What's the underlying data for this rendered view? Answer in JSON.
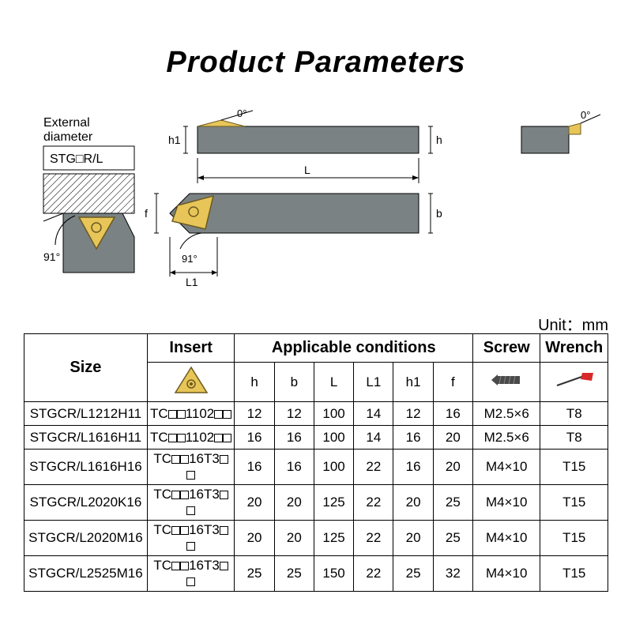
{
  "title": "Product Parameters",
  "unit_label": "Unit：mm",
  "diagram": {
    "ext_diam_label": "External\ndiameter",
    "stg_label": "STG□R/L",
    "angle0": "0°",
    "angle91": "91°",
    "dim_h": "h",
    "dim_h1": "h1",
    "dim_b": "b",
    "dim_f": "f",
    "dim_L": "L",
    "dim_L1": "L1",
    "colors": {
      "bar": "#7a8284",
      "insert": "#e8c558",
      "bg": "#ffffff",
      "line": "#000000"
    }
  },
  "table": {
    "headers": {
      "size": "Size",
      "insert": "Insert",
      "conditions": "Applicable conditions",
      "screw": "Screw",
      "wrench": "Wrench"
    },
    "cond_cols": [
      "h",
      "b",
      "L",
      "L1",
      "h1",
      "f"
    ],
    "rows": [
      {
        "size": "STGCR/L1212H11",
        "insert_pre": "TC",
        "insert_mid": "1102",
        "h": "12",
        "b": "12",
        "L": "100",
        "L1": "14",
        "h1": "12",
        "f": "16",
        "screw": "M2.5×6",
        "wrench": "T8"
      },
      {
        "size": "STGCR/L1616H11",
        "insert_pre": "TC",
        "insert_mid": "1102",
        "h": "16",
        "b": "16",
        "L": "100",
        "L1": "14",
        "h1": "16",
        "f": "20",
        "screw": "M2.5×6",
        "wrench": "T8"
      },
      {
        "size": "STGCR/L1616H16",
        "insert_pre": "TC",
        "insert_mid": "16T3",
        "h": "16",
        "b": "16",
        "L": "100",
        "L1": "22",
        "h1": "16",
        "f": "20",
        "screw": "M4×10",
        "wrench": "T15"
      },
      {
        "size": "STGCR/L2020K16",
        "insert_pre": "TC",
        "insert_mid": "16T3",
        "h": "20",
        "b": "20",
        "L": "125",
        "L1": "22",
        "h1": "20",
        "f": "25",
        "screw": "M4×10",
        "wrench": "T15"
      },
      {
        "size": "STGCR/L2020M16",
        "insert_pre": "TC",
        "insert_mid": "16T3",
        "h": "20",
        "b": "20",
        "L": "125",
        "L1": "22",
        "h1": "20",
        "f": "25",
        "screw": "M4×10",
        "wrench": "T15"
      },
      {
        "size": "STGCR/L2525M16",
        "insert_pre": "TC",
        "insert_mid": "16T3",
        "h": "25",
        "b": "25",
        "L": "150",
        "L1": "22",
        "h1": "25",
        "f": "32",
        "screw": "M4×10",
        "wrench": "T15"
      }
    ]
  },
  "icons": {
    "insert_fill": "#e8c558",
    "insert_stroke": "#6b5a20",
    "screw_fill": "#4a4a4a",
    "wrench_handle": "#333333",
    "wrench_flag": "#d82828"
  }
}
